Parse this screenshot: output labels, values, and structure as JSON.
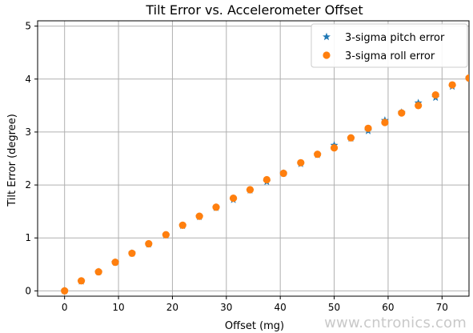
{
  "chart_data": {
    "type": "scatter",
    "title": "Tilt Error vs. Accelerometer Offset",
    "xlabel": "Offset (mg)",
    "ylabel": "Tilt Error (degree)",
    "xlim": [
      -5,
      75
    ],
    "ylim": [
      -0.1,
      5.1
    ],
    "xticks": [
      0,
      10,
      20,
      30,
      40,
      50,
      60,
      70
    ],
    "yticks": [
      0,
      1,
      2,
      3,
      4,
      5
    ],
    "grid": true,
    "legend_position": "top-right",
    "series": [
      {
        "name": "3-sigma pitch error",
        "marker": "star",
        "color": "#1f77b4",
        "x": [
          0,
          3.1,
          6.3,
          9.4,
          12.5,
          15.6,
          18.8,
          21.9,
          25,
          28.1,
          31.3,
          34.4,
          37.5,
          40.6,
          43.8,
          46.9,
          50,
          53.1,
          56.3,
          59.4,
          62.5,
          65.6,
          68.8,
          71.9,
          75
        ],
        "y": [
          0,
          0.18,
          0.36,
          0.54,
          0.71,
          0.88,
          1.05,
          1.23,
          1.4,
          1.57,
          1.72,
          1.9,
          2.06,
          2.22,
          2.4,
          2.57,
          2.75,
          2.88,
          3.02,
          3.22,
          3.37,
          3.55,
          3.65,
          3.86,
          4.02
        ]
      },
      {
        "name": "3-sigma roll error",
        "marker": "circle",
        "color": "#ff7f0e",
        "x": [
          0,
          3.1,
          6.3,
          9.4,
          12.5,
          15.6,
          18.8,
          21.9,
          25,
          28.1,
          31.3,
          34.4,
          37.5,
          40.6,
          43.8,
          46.9,
          50,
          53.1,
          56.3,
          59.4,
          62.5,
          65.6,
          68.8,
          71.9,
          75
        ],
        "y": [
          0,
          0.19,
          0.36,
          0.54,
          0.71,
          0.89,
          1.06,
          1.24,
          1.41,
          1.58,
          1.75,
          1.91,
          2.1,
          2.22,
          2.42,
          2.58,
          2.7,
          2.89,
          3.07,
          3.18,
          3.36,
          3.5,
          3.7,
          3.89,
          4.02
        ]
      }
    ]
  },
  "watermark": "www.cntronics.com"
}
